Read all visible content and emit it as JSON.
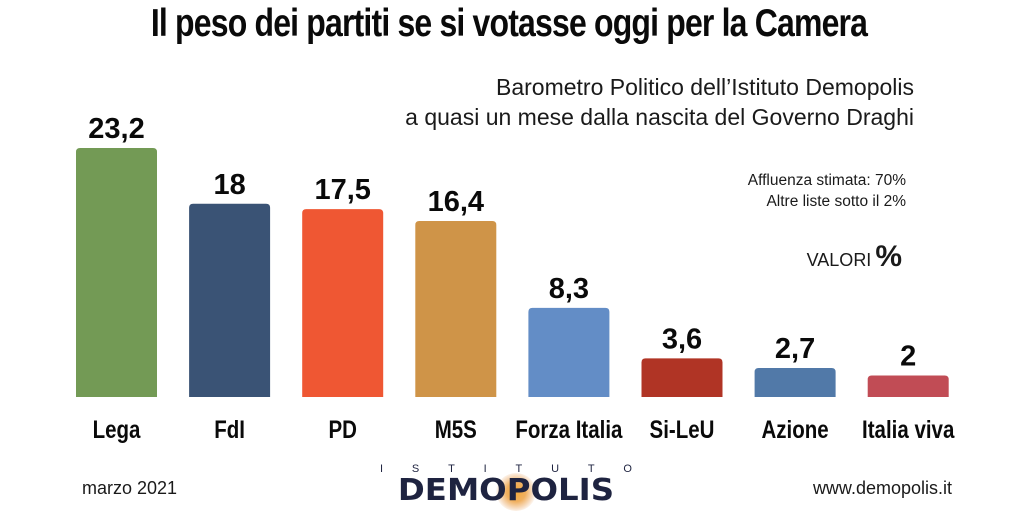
{
  "chart_data": {
    "type": "bar",
    "title": "Il peso dei partiti se si votasse oggi per la Camera",
    "subtitle": [
      "Barometro Politico dell’Istituto Demopolis",
      "a quasi un mese dalla nascita del Governo Draghi"
    ],
    "notes": [
      "Affluenza stimata: 70%",
      "Altre liste sotto il 2%"
    ],
    "unit_label": "VALORI",
    "unit_symbol": "%",
    "categories": [
      "Lega",
      "FdI",
      "PD",
      "M5S",
      "Forza Italia",
      "Si-LeU",
      "Azione",
      "Italia viva"
    ],
    "values": [
      23.2,
      18,
      17.5,
      16.4,
      8.3,
      3.6,
      2.7,
      2
    ],
    "value_labels": [
      "23,2",
      "18",
      "17,5",
      "16,4",
      "8,3",
      "3,6",
      "2,7",
      "2"
    ],
    "colors": [
      "#739a55",
      "#3a5375",
      "#ef5733",
      "#cf9448",
      "#638dc6",
      "#b03425",
      "#5179a8",
      "#c14c55"
    ],
    "xlabel": "",
    "ylabel": "",
    "ylim": [
      0,
      23.2
    ],
    "grid": false,
    "legend": "none"
  },
  "footer": {
    "date": "marzo 2021",
    "website": "www.demopolis.it",
    "logo_top": [
      "I",
      "S",
      "T",
      "I",
      "T",
      "U",
      "T",
      "O"
    ],
    "logo_name": "DEMOPOLIS"
  }
}
